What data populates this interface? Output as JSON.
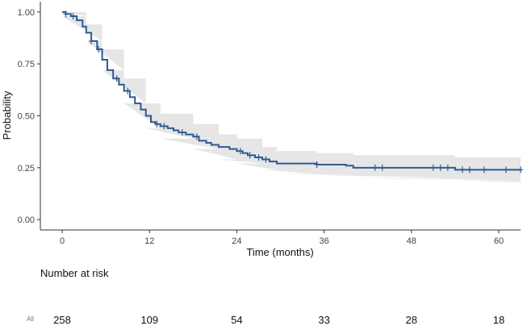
{
  "colors": {
    "curve": "#2e5b8f",
    "band": "#e6e6e6",
    "axis": "#333333"
  },
  "chart_data": {
    "type": "line",
    "subtype": "kaplan-meier-survival",
    "xlabel": "Time (months)",
    "ylabel": "Probability",
    "xlim": [
      -3,
      63
    ],
    "ylim": [
      -0.05,
      1.05
    ],
    "xticks": [
      0,
      12,
      24,
      36,
      48,
      60
    ],
    "xtick_labels": [
      "0",
      "12",
      "24",
      "36",
      "48",
      "60"
    ],
    "yticks": [
      0.0,
      0.25,
      0.5,
      0.75,
      1.0
    ],
    "ytick_labels": [
      "0.00",
      "0.25",
      "0.50",
      "0.75",
      "1.00"
    ],
    "grid": false,
    "series": [
      {
        "name": "All",
        "steps": [
          [
            0,
            1.0
          ],
          [
            0.5,
            0.99
          ],
          [
            1.2,
            0.98
          ],
          [
            2.0,
            0.96
          ],
          [
            2.8,
            0.93
          ],
          [
            3.3,
            0.9
          ],
          [
            4.0,
            0.86
          ],
          [
            4.8,
            0.82
          ],
          [
            5.5,
            0.77
          ],
          [
            6.2,
            0.72
          ],
          [
            7.0,
            0.68
          ],
          [
            7.8,
            0.65
          ],
          [
            8.5,
            0.62
          ],
          [
            9.3,
            0.59
          ],
          [
            10.0,
            0.56
          ],
          [
            10.8,
            0.53
          ],
          [
            11.5,
            0.5
          ],
          [
            12.2,
            0.47
          ],
          [
            12.8,
            0.46
          ],
          [
            13.5,
            0.45
          ],
          [
            14.5,
            0.44
          ],
          [
            15.3,
            0.43
          ],
          [
            16.0,
            0.42
          ],
          [
            17.0,
            0.41
          ],
          [
            18.0,
            0.4
          ],
          [
            18.8,
            0.38
          ],
          [
            19.8,
            0.37
          ],
          [
            20.5,
            0.36
          ],
          [
            21.5,
            0.35
          ],
          [
            23.0,
            0.34
          ],
          [
            24.0,
            0.33
          ],
          [
            24.8,
            0.32
          ],
          [
            25.5,
            0.31
          ],
          [
            26.5,
            0.3
          ],
          [
            27.5,
            0.29
          ],
          [
            28.5,
            0.28
          ],
          [
            29.5,
            0.27
          ],
          [
            35.0,
            0.265
          ],
          [
            39.0,
            0.26
          ],
          [
            40.0,
            0.25
          ],
          [
            54.0,
            0.24
          ],
          [
            63.0,
            0.24
          ]
        ],
        "ci_lower": [
          [
            0,
            0.98
          ],
          [
            3.3,
            0.86
          ],
          [
            5.5,
            0.72
          ],
          [
            8.5,
            0.56
          ],
          [
            11.5,
            0.44
          ],
          [
            13.5,
            0.39
          ],
          [
            18.0,
            0.34
          ],
          [
            21.5,
            0.29
          ],
          [
            24.0,
            0.27
          ],
          [
            27.5,
            0.24
          ],
          [
            29.5,
            0.22
          ],
          [
            35.0,
            0.215
          ],
          [
            40.0,
            0.2
          ],
          [
            54.0,
            0.19
          ],
          [
            63.0,
            0.18
          ]
        ],
        "ci_upper": [
          [
            0,
            1.0
          ],
          [
            3.3,
            0.94
          ],
          [
            5.5,
            0.82
          ],
          [
            8.5,
            0.68
          ],
          [
            11.5,
            0.56
          ],
          [
            13.5,
            0.51
          ],
          [
            18.0,
            0.46
          ],
          [
            21.5,
            0.41
          ],
          [
            24.0,
            0.39
          ],
          [
            27.5,
            0.35
          ],
          [
            29.5,
            0.33
          ],
          [
            35.0,
            0.32
          ],
          [
            40.0,
            0.31
          ],
          [
            54.0,
            0.3
          ],
          [
            63.0,
            0.3
          ]
        ],
        "censor_marks": [
          [
            0.5,
            0.99
          ],
          [
            1.5,
            0.98
          ],
          [
            4.0,
            0.86
          ],
          [
            5.0,
            0.82
          ],
          [
            7.5,
            0.68
          ],
          [
            9.0,
            0.62
          ],
          [
            13.0,
            0.46
          ],
          [
            14.0,
            0.45
          ],
          [
            16.5,
            0.42
          ],
          [
            18.5,
            0.4
          ],
          [
            24.5,
            0.33
          ],
          [
            25.8,
            0.31
          ],
          [
            27.0,
            0.3
          ],
          [
            28.0,
            0.29
          ],
          [
            35.0,
            0.265
          ],
          [
            43.0,
            0.25
          ],
          [
            44.0,
            0.25
          ],
          [
            51.0,
            0.25
          ],
          [
            52.0,
            0.25
          ],
          [
            53.0,
            0.25
          ],
          [
            55.0,
            0.24
          ],
          [
            56.0,
            0.24
          ],
          [
            58.0,
            0.24
          ],
          [
            61.0,
            0.24
          ],
          [
            63.0,
            0.24
          ]
        ]
      }
    ],
    "risk_table": {
      "title": "Number at risk",
      "strata_label": "All",
      "times": [
        0,
        12,
        24,
        36,
        48,
        60
      ],
      "counts": [
        "258",
        "109",
        "54",
        "33",
        "28",
        "18"
      ]
    }
  }
}
